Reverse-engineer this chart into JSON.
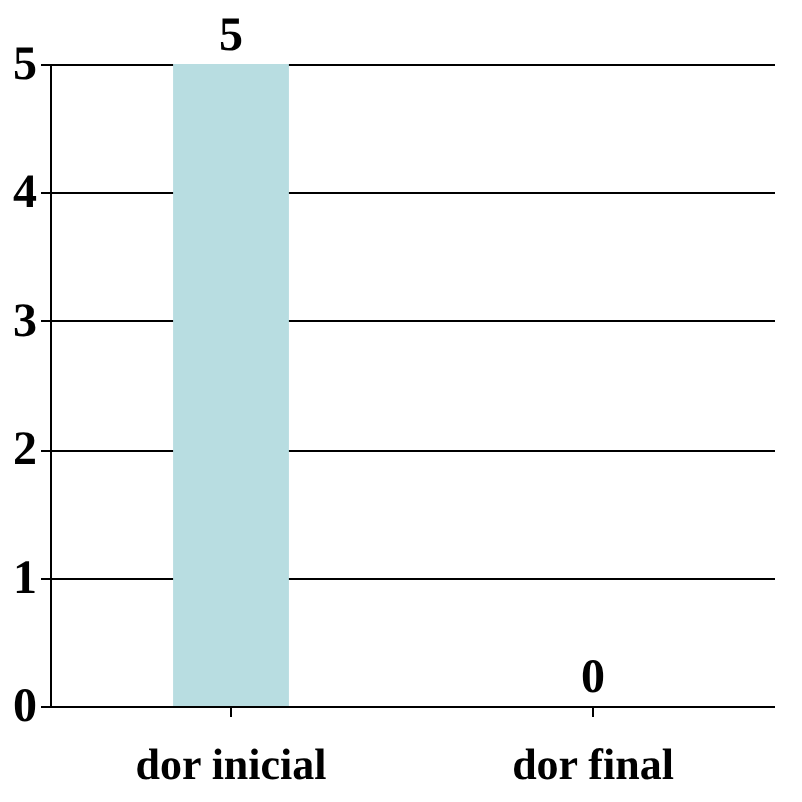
{
  "chart_data": {
    "type": "bar",
    "categories": [
      "dor inicial",
      "dor final"
    ],
    "values": [
      5,
      0
    ],
    "color": "#b8dde1",
    "ylim": [
      0,
      5
    ],
    "yticks": [
      0,
      1,
      2,
      3,
      4,
      5
    ],
    "grid": "y",
    "data_labels": true
  }
}
